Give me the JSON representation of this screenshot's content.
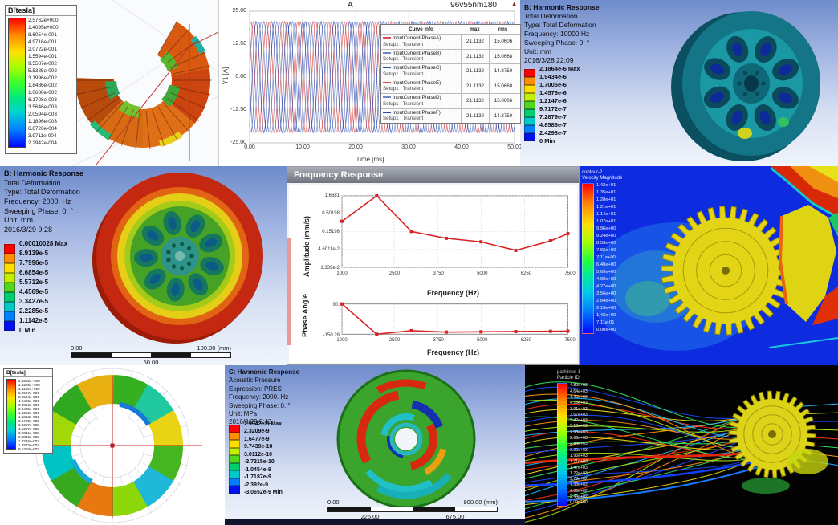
{
  "colors": {
    "accent_red": "#d65151",
    "accent_blue": "#6f86c9",
    "accent_navy": "#3347a8",
    "rainbow9": [
      "#ff0000",
      "#ff8f00",
      "#ffdf00",
      "#c3f000",
      "#4fd81e",
      "#00cf6e",
      "#00c9c9",
      "#0080ff",
      "#0010f0"
    ]
  },
  "maxwell_a": {
    "legend_title": "B[tesla]",
    "values": [
      "2.5762e+000",
      "1.4095e+000",
      "8.6054e-001",
      "4.9716e-001",
      "2.0722e-001",
      "1.5594e-001",
      "9.5587e-002",
      "5.5385e-002",
      "3.1996e-002",
      "1.8486e-002",
      "1.0680e-002",
      "6.1708e-003",
      "3.5646e-003",
      "2.0594e-003",
      "1.1896e-003",
      "6.8726e-004",
      "3.9711e-004",
      "2.2942e-004"
    ]
  },
  "transient": {
    "corner_label": "A",
    "title": "96v55nm180",
    "y_label": "Y1 [A]",
    "x_label": "Time [ms]",
    "y_ticks": [
      "25.00",
      "12.50",
      "0.00",
      "-12.50",
      "-25.00"
    ],
    "x_ticks": [
      "0.00",
      "10.00",
      "20.00",
      "30.00",
      "40.00",
      "50.00"
    ],
    "legend_headers": [
      "Curve Info",
      "max",
      "rms"
    ],
    "legend_rows": [
      {
        "name": "InputCurrent(PhaseA)",
        "setup": "Setup1 : Transient",
        "max": "21.1132",
        "rms": "15.0606",
        "color": "#d65151"
      },
      {
        "name": "InputCurrent(PhaseB)",
        "setup": "Setup1 : Transient",
        "max": "21.1132",
        "rms": "15.0668",
        "color": "#6f86c9"
      },
      {
        "name": "InputCurrent(PhaseC)",
        "setup": "Setup1 : Transient",
        "max": "21.1132",
        "rms": "14.8750",
        "color": "#3347a8"
      },
      {
        "name": "InputCurrent(PhaseE)",
        "setup": "Setup1 : Transient",
        "max": "21.1132",
        "rms": "15.0668",
        "color": "#d65151"
      },
      {
        "name": "InputCurrent(PhaseD)",
        "setup": "Setup1 : Transient",
        "max": "21.1132",
        "rms": "15.0606",
        "color": "#6f86c9"
      },
      {
        "name": "InputCurrent(PhaseF)",
        "setup": "Setup1 : Transient",
        "max": "21.1132",
        "rms": "14.8750",
        "color": "#3347a8"
      }
    ]
  },
  "harmonic_b1": {
    "info": [
      "B: Harmonic Response",
      "Total Deformation",
      "Type: Total Deformation",
      "Frequency: 10000 Hz",
      "Sweeping Phase: 0. °",
      "Unit: mm",
      "2016/3/28 22:09"
    ],
    "values": [
      "2.1864e-6 Max",
      "1.9434e-6",
      "1.7005e-6",
      "1.4576e-6",
      "1.2147e-6",
      "9.7172e-7",
      "7.2879e-7",
      "4.8586e-7",
      "2.4293e-7",
      "0 Min"
    ]
  },
  "harmonic_b2": {
    "info": [
      "B: Harmonic Response",
      "Total Deformation",
      "Type: Total Deformation",
      "Frequency: 2000. Hz",
      "Sweeping Phase: 0. °",
      "Unit: mm",
      "2016/3/29 9:28"
    ],
    "values": [
      "0.00010028 Max",
      "8.9139e-5",
      "7.7996e-5",
      "6.6854e-5",
      "5.5712e-5",
      "4.4569e-5",
      "3.3427e-5",
      "2.2285e-5",
      "1.1142e-5",
      "0 Min"
    ],
    "ruler": {
      "start": "0.00",
      "end": "100.00 (mm)",
      "mid": "50.00"
    }
  },
  "freq_response": {
    "window_title": "Frequency Response",
    "amp_ylabel": "Amplitude (mm/s)",
    "amp_yticks": [
      "1.6681",
      "0.50198",
      "0.15198",
      "4.6011e-2",
      "1.339e-2"
    ],
    "phase_ylabel": "Phase Angle",
    "phase_yticks": [
      "90.",
      "-150.28"
    ],
    "x_ticks": [
      "1000",
      "2500",
      "3750",
      "5000",
      "6250",
      "7500"
    ],
    "x_label": "Frequency (Hz)"
  },
  "cfd_contour": {
    "header": [
      "contour-2",
      "Velocity Magnitude"
    ],
    "values": [
      "1.42e+01",
      "1.35e+01",
      "1.28e+01",
      "1.21e+01",
      "1.14e+01",
      "1.07e+01",
      "9.96e+00",
      "9.24e+00",
      "8.53e+00",
      "7.82e+00",
      "7.11e+00",
      "6.40e+00",
      "5.69e+00",
      "4.98e+00",
      "4.27e+00",
      "3.56e+00",
      "2.84e+00",
      "2.13e+00",
      "1.42e+00",
      "7.11e-01",
      "0.00e+00"
    ]
  },
  "maxwell_g": {
    "legend_title": "B[tesla]",
    "values": [
      "2.1052e+000",
      "1.5286e+000",
      "1.1100e+000",
      "8.0597e-001",
      "5.8524e-001",
      "4.2495e-001",
      "3.0856e-001",
      "2.2405e-001",
      "1.6269e-001",
      "1.1813e-001",
      "8.5780e-002",
      "6.2287e-002",
      "4.5227e-002",
      "3.2841e-002",
      "2.3846e-002",
      "1.7315e-002",
      "1.2573e-002",
      "9.1293e-003"
    ]
  },
  "acoustic": {
    "info": [
      "C: Harmonic Response",
      "Acoustic Pressure",
      "Expression: PRES",
      "Frequency: 2000. Hz",
      "Sweeping Phase: 0. °",
      "Unit: MPa",
      "2016/3/29 9:43"
    ],
    "values": [
      "2.9942e-9 Max",
      "2.3209e-9",
      "1.6477e-9",
      "9.7439e-10",
      "3.0112e-10",
      "-3.7215e-10",
      "-1.0454e-9",
      "-1.7187e-9",
      "-2.392e-9",
      "-3.0652e-9 Min"
    ],
    "ruler": {
      "start": "0.00",
      "end": "900.00 (mm)",
      "mid1": "225.00",
      "mid2": "675.00"
    }
  },
  "pathlines": {
    "header": [
      "pathlines-1",
      "Particle ID"
    ],
    "values": [
      "4.89e+03",
      "4.64e+03",
      "4.40e+03",
      "4.15e+03",
      "3.91e+03",
      "3.67e+03",
      "3.42e+03",
      "3.18e+03",
      "2.93e+03",
      "2.69e+03",
      "2.44e+03",
      "2.20e+03",
      "1.96e+03",
      "1.71e+03",
      "1.47e+03",
      "1.22e+03",
      "9.78e+02",
      "7.33e+02",
      "4.89e+02",
      "2.44e+02",
      "0.00e+00"
    ]
  },
  "chart_data": [
    {
      "type": "line",
      "title": "96v55nm180",
      "xlabel": "Time [ms]",
      "ylabel": "Y1 [A]",
      "xlim": [
        0,
        50
      ],
      "ylim": [
        -25,
        25
      ],
      "waveform": "sinusoid",
      "period_ms": 2.94,
      "amplitude": 21.1132,
      "legend_position": "right-inside",
      "series": [
        {
          "name": "InputCurrent(PhaseA)",
          "phase_deg": 0,
          "max": 21.1132,
          "rms": 15.0606
        },
        {
          "name": "InputCurrent(PhaseB)",
          "phase_deg": 120,
          "max": 21.1132,
          "rms": 15.0668
        },
        {
          "name": "InputCurrent(PhaseC)",
          "phase_deg": 240,
          "max": 21.1132,
          "rms": 14.875
        },
        {
          "name": "InputCurrent(PhaseE)",
          "phase_deg": 60,
          "max": 21.1132,
          "rms": 15.0668
        },
        {
          "name": "InputCurrent(PhaseD)",
          "phase_deg": 180,
          "max": 21.1132,
          "rms": 15.0606
        },
        {
          "name": "InputCurrent(PhaseF)",
          "phase_deg": 300,
          "max": 21.1132,
          "rms": 14.875
        }
      ]
    },
    {
      "type": "line",
      "title": "Frequency Response - Amplitude",
      "xlabel": "Frequency (Hz)",
      "ylabel": "Amplitude (mm/s)",
      "yscale": "log",
      "xlim": [
        1000,
        7500
      ],
      "ylim": [
        0.01339,
        1.6681
      ],
      "x": [
        1000,
        2000,
        3000,
        4000,
        5000,
        6000,
        7000,
        7500
      ],
      "y": [
        0.3,
        1.6681,
        0.15,
        0.095,
        0.075,
        0.042,
        0.08,
        0.13
      ],
      "grid": true
    },
    {
      "type": "line",
      "title": "Frequency Response - Phase",
      "xlabel": "Frequency (Hz)",
      "ylabel": "Phase Angle",
      "xlim": [
        1000,
        7500
      ],
      "ylim": [
        -150.28,
        90
      ],
      "x": [
        1000,
        2000,
        3000,
        4000,
        5000,
        6000,
        7000,
        7500
      ],
      "y": [
        90,
        -150,
        -122,
        -133,
        -131,
        -129,
        -127,
        -126
      ],
      "grid": true
    }
  ]
}
